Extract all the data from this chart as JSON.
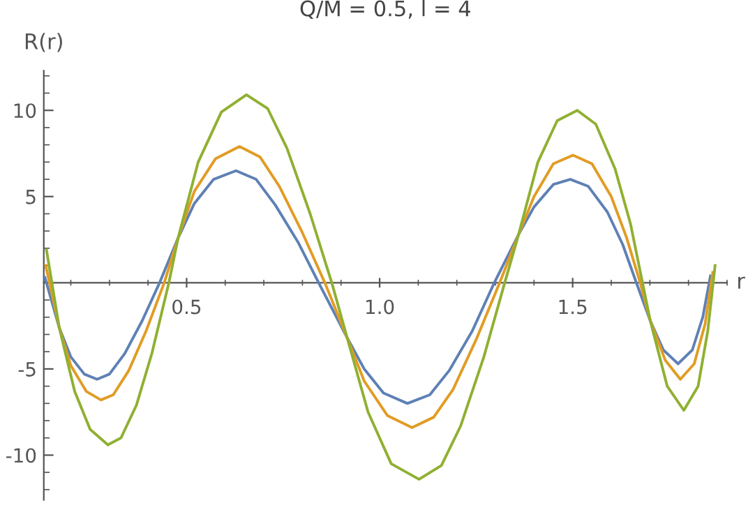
{
  "chart_data": {
    "type": "line",
    "title": "Q/M = 0.5, l = 4",
    "xlabel": "r",
    "ylabel": "R(r)",
    "xlim": [
      0.13,
      1.9
    ],
    "xticks": [
      0.5,
      {
        "value": 1.0,
        "label": "1.0"
      },
      1.5
    ],
    "ylim": [
      -12.6,
      12.3
    ],
    "yticks": [
      -10,
      -5,
      5,
      10
    ],
    "series": [
      {
        "color": "#5e81b5",
        "x": [
          0.133,
          0.17,
          0.2,
          0.235,
          0.268,
          0.3,
          0.34,
          0.385,
          0.43,
          0.478,
          0.52,
          0.57,
          0.628,
          0.68,
          0.73,
          0.79,
          0.842,
          0.916,
          0.96,
          1.01,
          1.072,
          1.13,
          1.18,
          1.24,
          1.297,
          1.36,
          1.4,
          1.45,
          1.494,
          1.54,
          1.59,
          1.63,
          1.665,
          1.701,
          1.735,
          1.773,
          1.81,
          1.837,
          1.857
        ],
        "values": [
          0.3,
          -2.6,
          -4.3,
          -5.3,
          -5.6,
          -5.3,
          -4.1,
          -2.2,
          0,
          2.6,
          4.6,
          6.0,
          6.5,
          6.0,
          4.5,
          2.3,
          0,
          -3.2,
          -5.0,
          -6.4,
          -7.0,
          -6.5,
          -5.1,
          -2.8,
          0,
          2.8,
          4.4,
          5.7,
          6.0,
          5.6,
          4.1,
          2.2,
          0,
          -2.2,
          -3.9,
          -4.7,
          -3.9,
          -2.0,
          0.4
        ]
      },
      {
        "color": "#e19c24",
        "x": [
          0.135,
          0.17,
          0.2,
          0.24,
          0.278,
          0.31,
          0.35,
          0.395,
          0.442,
          0.478,
          0.52,
          0.575,
          0.637,
          0.69,
          0.74,
          0.8,
          0.858,
          0.916,
          0.96,
          1.02,
          1.084,
          1.14,
          1.19,
          1.25,
          1.311,
          1.36,
          1.4,
          1.45,
          1.501,
          1.55,
          1.6,
          1.64,
          1.675,
          1.701,
          1.74,
          1.779,
          1.815,
          1.843,
          1.863
        ],
        "values": [
          1.0,
          -2.6,
          -4.8,
          -6.3,
          -6.8,
          -6.5,
          -5.1,
          -2.8,
          0,
          2.6,
          5.3,
          7.2,
          7.9,
          7.3,
          5.6,
          2.9,
          0,
          -3.2,
          -5.7,
          -7.7,
          -8.4,
          -7.8,
          -6.2,
          -3.3,
          0,
          2.8,
          5.0,
          6.9,
          7.4,
          6.9,
          5.0,
          2.6,
          0,
          -2.2,
          -4.5,
          -5.6,
          -4.7,
          -2.4,
          0.6
        ]
      },
      {
        "color": "#8fb032",
        "x": [
          0.137,
          0.17,
          0.21,
          0.25,
          0.296,
          0.33,
          0.37,
          0.41,
          0.454,
          0.478,
          0.53,
          0.59,
          0.655,
          0.71,
          0.76,
          0.82,
          0.876,
          0.916,
          0.97,
          1.03,
          1.102,
          1.16,
          1.21,
          1.27,
          1.324,
          1.36,
          1.41,
          1.46,
          1.512,
          1.56,
          1.61,
          1.65,
          1.681,
          1.701,
          1.745,
          1.788,
          1.825,
          1.85,
          1.869
        ],
        "values": [
          1.9,
          -2.6,
          -6.3,
          -8.5,
          -9.4,
          -9.0,
          -7.1,
          -4.1,
          0,
          2.6,
          7.0,
          9.9,
          10.9,
          10.1,
          7.8,
          4.0,
          0,
          -3.2,
          -7.5,
          -10.5,
          -11.4,
          -10.6,
          -8.3,
          -4.3,
          0,
          2.8,
          7.0,
          9.4,
          10.0,
          9.2,
          6.6,
          3.4,
          0,
          -2.2,
          -6.0,
          -7.4,
          -6.0,
          -2.8,
          1.0
        ]
      }
    ]
  }
}
